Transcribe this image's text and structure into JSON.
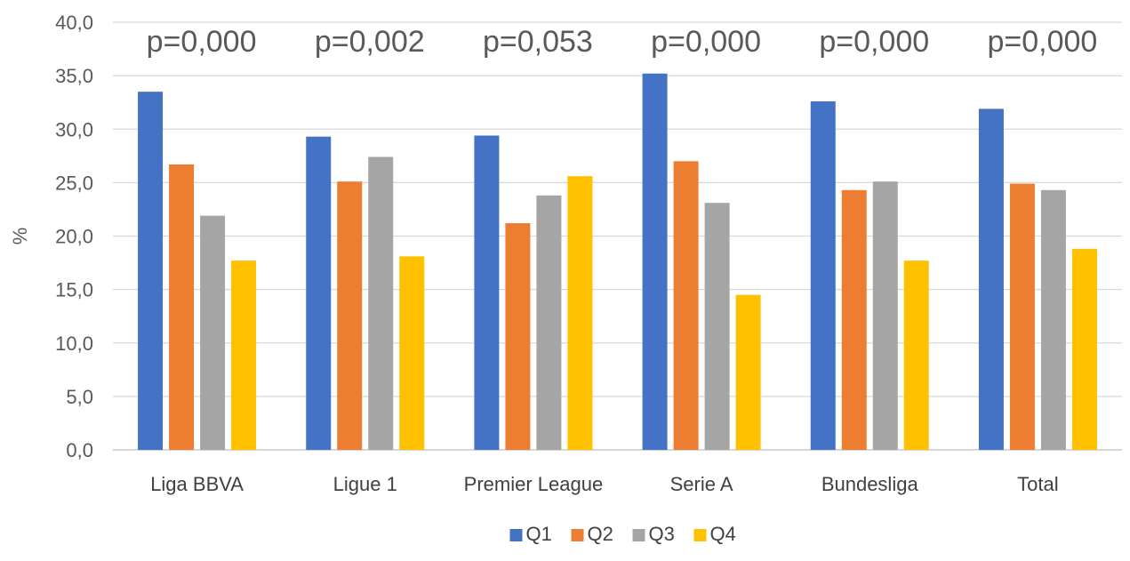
{
  "chart_data": {
    "type": "bar",
    "categories": [
      "Liga BBVA",
      "Ligue 1",
      "Premier League",
      "Serie A",
      "Bundesliga",
      "Total"
    ],
    "series": [
      {
        "name": "Q1",
        "color": "#4472C4",
        "values": [
          33.5,
          29.3,
          29.4,
          35.2,
          32.6,
          31.9
        ]
      },
      {
        "name": "Q2",
        "color": "#ED7D31",
        "values": [
          26.7,
          25.1,
          21.2,
          27.0,
          24.3,
          24.9
        ]
      },
      {
        "name": "Q3",
        "color": "#A5A5A5",
        "values": [
          21.9,
          27.4,
          23.8,
          23.1,
          25.1,
          24.3
        ]
      },
      {
        "name": "Q4",
        "color": "#FFC000",
        "values": [
          17.7,
          18.1,
          25.6,
          14.5,
          17.7,
          18.8
        ]
      }
    ],
    "annotations": [
      "p=0,000",
      "p=0,002",
      "p=0,053",
      "p=0,000",
      "p=0,000",
      "p=0,000"
    ],
    "ylabel": "%",
    "ylim": [
      0,
      40
    ],
    "yticks": [
      "0,0",
      "5,0",
      "10,0",
      "15,0",
      "20,0",
      "25,0",
      "30,0",
      "35,0",
      "40,0"
    ],
    "grid": true,
    "legend_position": "bottom"
  }
}
